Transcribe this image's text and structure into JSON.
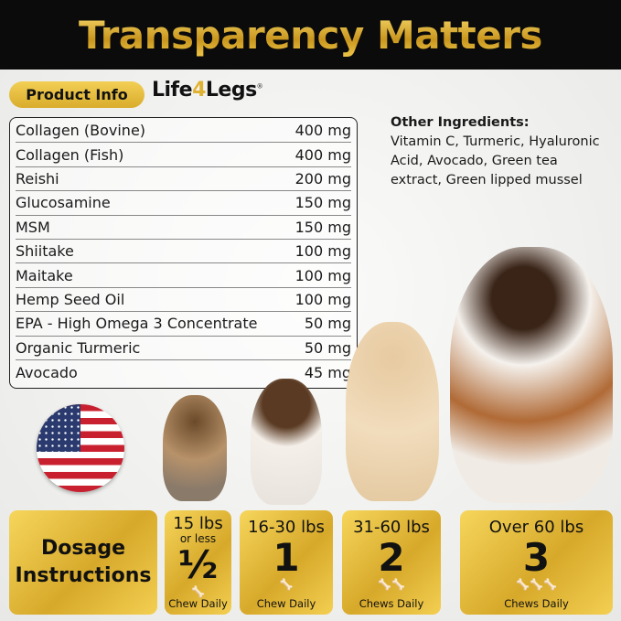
{
  "header": {
    "title": "Transparency Matters"
  },
  "product_info": {
    "label": "Product Info",
    "logo": "Life4Legs"
  },
  "ingredients": [
    {
      "name": "Collagen (Bovine)",
      "amount": "400 mg"
    },
    {
      "name": "Collagen (Fish)",
      "amount": "400 mg"
    },
    {
      "name": "Reishi",
      "amount": "200 mg"
    },
    {
      "name": "Glucosamine",
      "amount": "150 mg"
    },
    {
      "name": "MSM",
      "amount": "150 mg"
    },
    {
      "name": "Shiitake",
      "amount": "100 mg"
    },
    {
      "name": "Maitake",
      "amount": "100 mg"
    },
    {
      "name": "Hemp Seed Oil",
      "amount": "100 mg"
    },
    {
      "name": "EPA - High Omega 3 Concentrate",
      "amount": "50 mg"
    },
    {
      "name": "Organic Turmeric",
      "amount": "50 mg"
    },
    {
      "name": "Avocado",
      "amount": "45 mg"
    }
  ],
  "other_ingredients": {
    "title": "Other Ingredients:",
    "text": "Vitamin C, Turmeric, Hyaluronic Acid, Avocado, Green tea extract, Green lipped mussel"
  },
  "dosage": {
    "title_line1": "Dosage",
    "title_line2": "Instructions",
    "tiers": [
      {
        "weight": "15 lbs",
        "sub": "or less",
        "amount": "½",
        "unit": "Chew Daily",
        "bones": "🦴"
      },
      {
        "weight": "16-30 lbs",
        "amount": "1",
        "unit": "Chew Daily",
        "bones": "🦴"
      },
      {
        "weight": "31-60 lbs",
        "amount": "2",
        "unit": "Chews Daily",
        "bones": "🦴🦴"
      },
      {
        "weight": "Over 60 lbs",
        "amount": "3",
        "unit": "Chews Daily",
        "bones": "🦴🦴🦴"
      }
    ]
  },
  "colors": {
    "gold": "#d9ac2c",
    "header_bg": "#0b0b0b"
  }
}
